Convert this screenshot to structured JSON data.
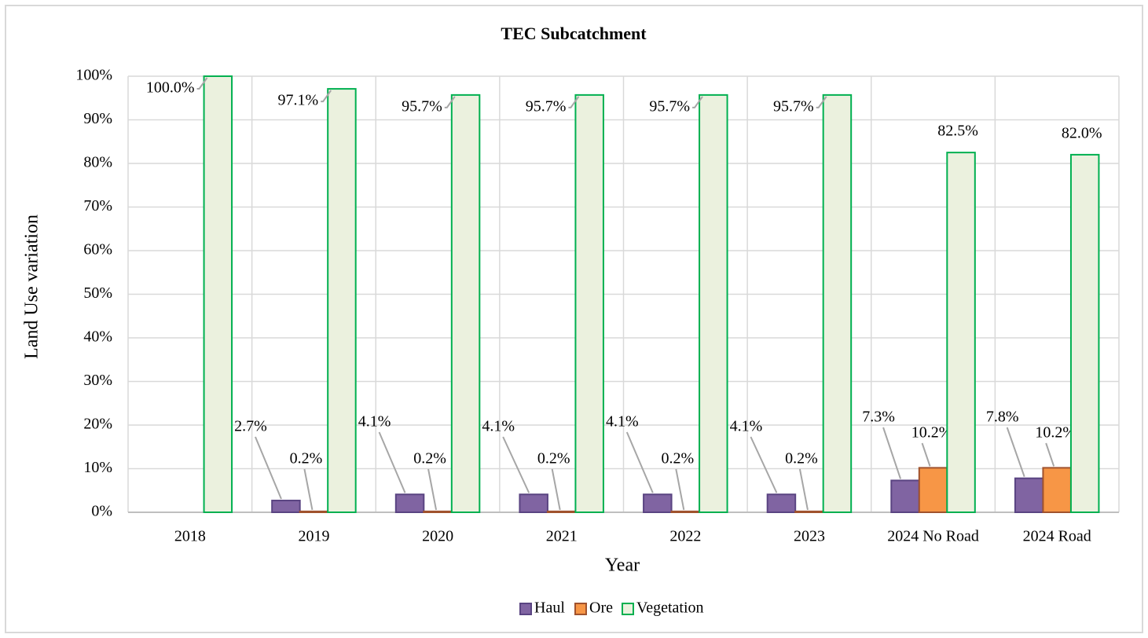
{
  "chart_data": {
    "type": "bar",
    "title": "TEC Subcatchment",
    "xlabel": "Year",
    "ylabel": "Land Use variation",
    "categories": [
      "2018",
      "2019",
      "2020",
      "2021",
      "2022",
      "2023",
      "2024 No Road",
      "2024 Road"
    ],
    "series": [
      {
        "name": "Haul",
        "color": "#8064a2",
        "edge": "#5a4482",
        "values": [
          null,
          2.7,
          4.1,
          4.1,
          4.1,
          4.1,
          7.3,
          7.8
        ],
        "value_labels": [
          null,
          "2.7%",
          "4.1%",
          "4.1%",
          "4.1%",
          "4.1%",
          "7.3%",
          "7.8%"
        ]
      },
      {
        "name": "Ore",
        "color": "#f79646",
        "edge": "#a0522d",
        "values": [
          null,
          0.2,
          0.2,
          0.2,
          0.2,
          0.2,
          10.2,
          10.2
        ],
        "value_labels": [
          null,
          "0.2%",
          "0.2%",
          "0.2%",
          "0.2%",
          "0.2%",
          "10.2%",
          "10.2%"
        ]
      },
      {
        "name": "Vegetation",
        "color": "#ebf1de",
        "edge": "#00b050",
        "values": [
          100.0,
          97.1,
          95.7,
          95.7,
          95.7,
          95.7,
          82.5,
          82.0
        ],
        "value_labels": [
          "100.0%",
          "97.1%",
          "95.7%",
          "95.7%",
          "95.7%",
          "95.7%",
          "82.5%",
          "82.0%"
        ]
      }
    ],
    "ylim": [
      0,
      100
    ],
    "yticks": [
      {
        "value": 0,
        "label": "0%"
      },
      {
        "value": 10,
        "label": "10%"
      },
      {
        "value": 20,
        "label": "20%"
      },
      {
        "value": 30,
        "label": "30%"
      },
      {
        "value": 40,
        "label": "40%"
      },
      {
        "value": 50,
        "label": "50%"
      },
      {
        "value": 60,
        "label": "60%"
      },
      {
        "value": 70,
        "label": "70%"
      },
      {
        "value": 80,
        "label": "80%"
      },
      {
        "value": 90,
        "label": "90%"
      },
      {
        "value": 100,
        "label": "100%"
      }
    ],
    "grid": true,
    "legend": "bottom"
  }
}
